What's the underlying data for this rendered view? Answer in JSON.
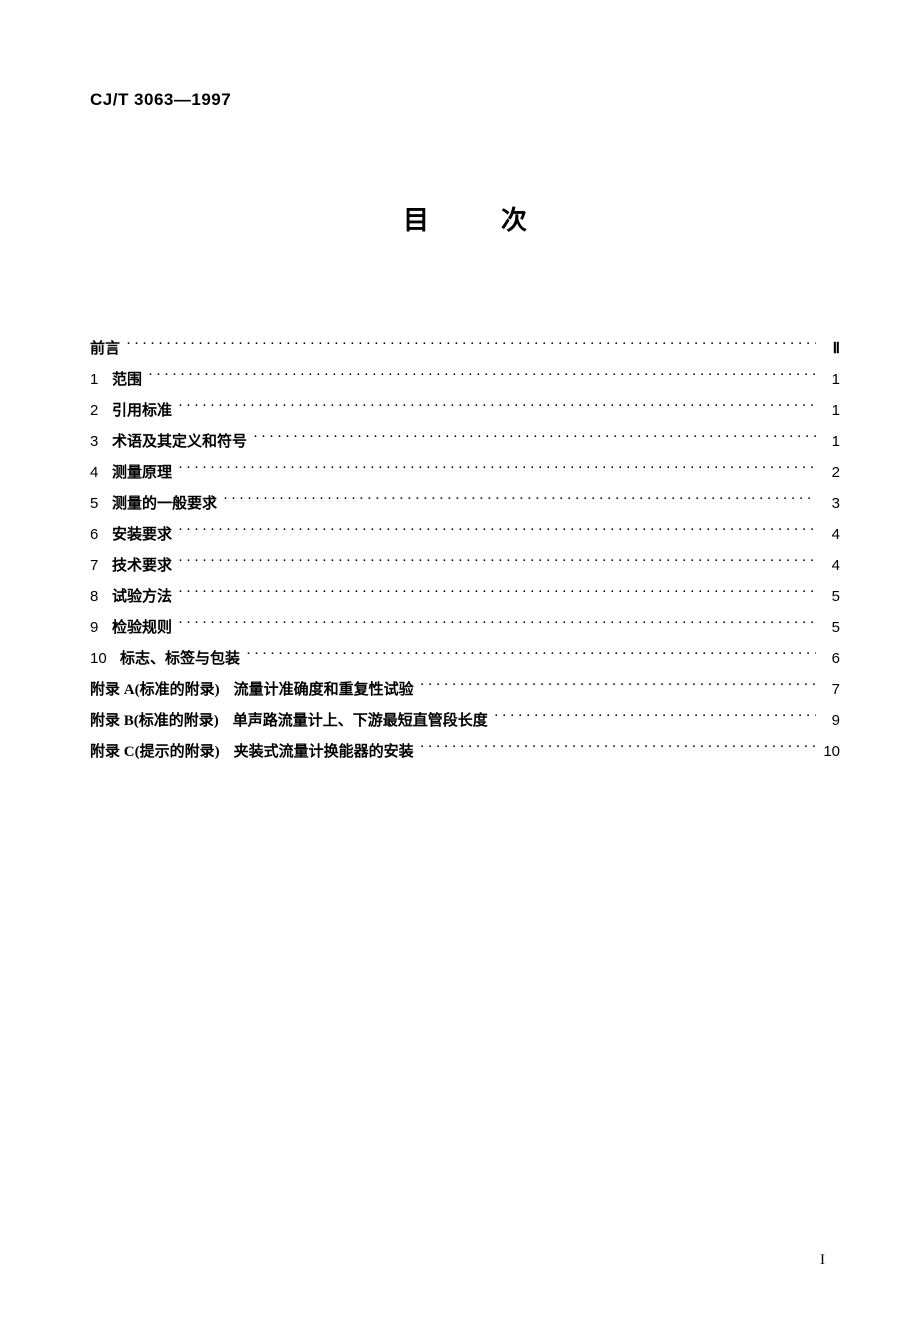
{
  "doc_id": "CJ/T 3063—1997",
  "title": "目次",
  "toc": {
    "preface": {
      "label": "前言",
      "page": "Ⅱ"
    },
    "items": [
      {
        "num": "1",
        "label": "范围",
        "page": "1"
      },
      {
        "num": "2",
        "label": "引用标准",
        "page": "1"
      },
      {
        "num": "3",
        "label": "术语及其定义和符号",
        "page": "1"
      },
      {
        "num": "4",
        "label": "测量原理",
        "page": "2"
      },
      {
        "num": "5",
        "label": "测量的一般要求",
        "page": "3"
      },
      {
        "num": "6",
        "label": "安装要求",
        "page": "4"
      },
      {
        "num": "7",
        "label": "技术要求",
        "page": "4"
      },
      {
        "num": "8",
        "label": "试验方法",
        "page": "5"
      },
      {
        "num": "9",
        "label": "检验规则",
        "page": "5"
      },
      {
        "num": "10",
        "label": "标志、标签与包装",
        "page": "6"
      }
    ],
    "appendices": [
      {
        "tag": "附录 A(标准的附录)",
        "desc": "流量计准确度和重复性试验",
        "page": "7"
      },
      {
        "tag": "附录 B(标准的附录)",
        "desc": "单声路流量计上、下游最短直管段长度",
        "page": "9"
      },
      {
        "tag": "附录 C(提示的附录)",
        "desc": "夹装式流量计换能器的安装",
        "page": "10"
      }
    ]
  },
  "footer_page": "I"
}
